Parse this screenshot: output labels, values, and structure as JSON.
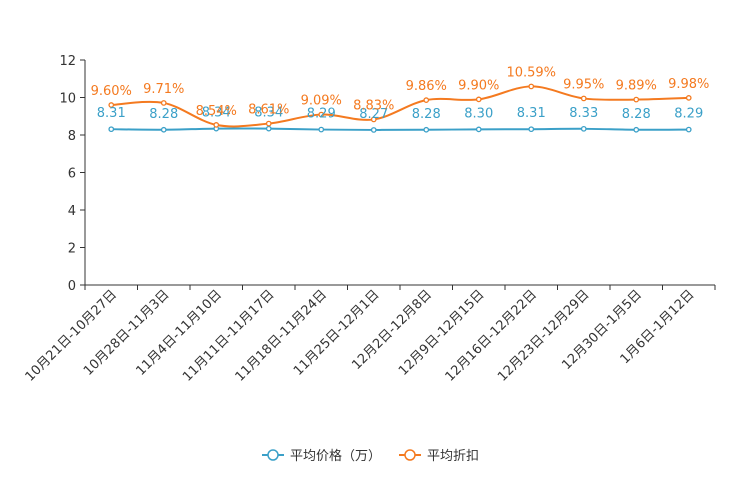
{
  "chart_data": {
    "type": "line",
    "categories": [
      "10月21日-10月27日",
      "10月28日-11月3日",
      "11月4日-11月10日",
      "11月11日-11月17日",
      "11月18日-11月24日",
      "11月25日-12月1日",
      "12月2日-12月8日",
      "12月9日-12月15日",
      "12月16日-12月22日",
      "12月23日-12月29日",
      "12月30日-1月5日",
      "1月6日-1月12日"
    ],
    "ylim": [
      0,
      12
    ],
    "yticks": [
      0,
      2,
      4,
      6,
      8,
      10,
      12
    ],
    "series": [
      {
        "name": "平均价格（万）",
        "color": "#3ba0c8",
        "values": [
          8.31,
          8.28,
          8.34,
          8.34,
          8.29,
          8.27,
          8.28,
          8.3,
          8.31,
          8.33,
          8.28,
          8.29
        ],
        "labels": [
          "8.31",
          "8.28",
          "8.34",
          "8.34",
          "8.29",
          "8.27",
          "8.28",
          "8.30",
          "8.31",
          "8.33",
          "8.28",
          "8.29"
        ]
      },
      {
        "name": "平均折扣",
        "color": "#f47a20",
        "values": [
          9.6,
          9.71,
          8.54,
          8.61,
          9.09,
          8.83,
          9.86,
          9.9,
          10.59,
          9.95,
          9.89,
          9.98
        ],
        "labels": [
          "9.60%",
          "9.71%",
          "8.54%",
          "8.61%",
          "9.09%",
          "8.83%",
          "9.86%",
          "9.90%",
          "10.59%",
          "9.95%",
          "9.89%",
          "9.98%"
        ]
      }
    ],
    "legend_position": "bottom"
  }
}
